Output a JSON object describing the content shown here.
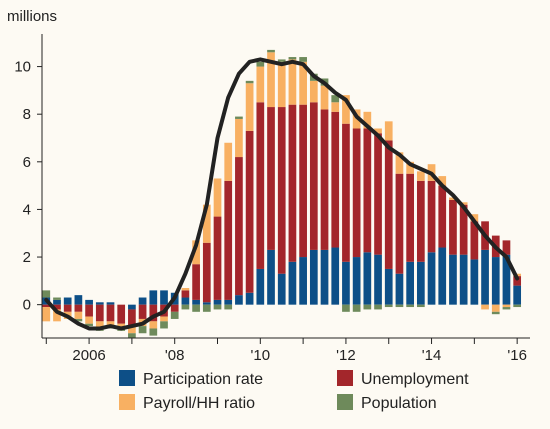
{
  "chart_data": {
    "type": "bar",
    "subtype": "stacked bar with line overlay",
    "ylabel": "millions",
    "ylim": [
      -1.4,
      11.2
    ],
    "yticks": [
      0,
      2,
      4,
      6,
      8,
      10
    ],
    "ytick_labels": [
      "0",
      "2",
      "4",
      "6",
      "8",
      "10"
    ],
    "xlim": [
      2004.9,
      2016.3
    ],
    "xticks": [
      2005,
      2006,
      2007,
      2008,
      2009,
      2010,
      2011,
      2012,
      2013,
      2014,
      2015,
      2016
    ],
    "xtick_labels": [
      {
        "x": 2006,
        "label": "2006"
      },
      {
        "x": 2008,
        "label": "'08"
      },
      {
        "x": 2010,
        "label": "'10"
      },
      {
        "x": 2012,
        "label": "'12"
      },
      {
        "x": 2014,
        "label": "'14"
      },
      {
        "x": 2016,
        "label": "'16"
      }
    ],
    "grid": false,
    "legend_position": "bottom",
    "x": [
      2005.0,
      2005.25,
      2005.5,
      2005.75,
      2006.0,
      2006.25,
      2006.5,
      2006.75,
      2007.0,
      2007.25,
      2007.5,
      2007.75,
      2008.0,
      2008.25,
      2008.5,
      2008.75,
      2009.0,
      2009.25,
      2009.5,
      2009.75,
      2010.0,
      2010.25,
      2010.5,
      2010.75,
      2011.0,
      2011.25,
      2011.5,
      2011.75,
      2012.0,
      2012.25,
      2012.5,
      2012.75,
      2013.0,
      2013.25,
      2013.5,
      2013.75,
      2014.0,
      2014.25,
      2014.5,
      2014.75,
      2015.0,
      2015.25,
      2015.5,
      2015.75,
      2016.0
    ],
    "series": [
      {
        "name": "Participation rate",
        "color": "#0d4f87",
        "values": [
          0.3,
          0.2,
          0.3,
          0.4,
          0.2,
          0.1,
          0.1,
          0.0,
          -0.2,
          0.3,
          0.6,
          0.6,
          0.5,
          0.3,
          0.2,
          0.1,
          0.2,
          0.2,
          0.4,
          0.5,
          1.5,
          2.3,
          1.3,
          1.8,
          2.0,
          2.3,
          2.3,
          2.4,
          1.8,
          2.0,
          2.2,
          2.1,
          1.5,
          1.3,
          1.8,
          1.8,
          2.2,
          2.4,
          2.1,
          2.1,
          1.9,
          2.3,
          2.0,
          2.1,
          0.8
        ]
      },
      {
        "name": "Unemployment",
        "color": "#a3262b",
        "values": [
          -0.1,
          -0.2,
          -0.3,
          -0.3,
          -0.5,
          -0.7,
          -0.7,
          -0.8,
          -0.7,
          -0.6,
          -0.7,
          -0.5,
          -0.3,
          0.3,
          1.5,
          2.5,
          3.5,
          5.0,
          5.8,
          6.8,
          7.0,
          6.0,
          7.0,
          6.6,
          6.4,
          6.2,
          5.9,
          5.7,
          5.8,
          5.4,
          5.2,
          5.1,
          5.4,
          4.2,
          3.7,
          3.4,
          3.0,
          2.6,
          2.3,
          2.1,
          1.6,
          1.2,
          0.9,
          0.6,
          0.4
        ]
      },
      {
        "name": "Payroll/HH ratio",
        "color": "#f8b062",
        "values": [
          -0.6,
          -0.5,
          -0.3,
          -0.3,
          -0.3,
          -0.3,
          -0.2,
          -0.2,
          -0.3,
          -0.3,
          -0.3,
          -0.2,
          0.0,
          0.1,
          1.0,
          1.6,
          1.6,
          1.6,
          1.6,
          2.0,
          1.5,
          2.3,
          1.9,
          1.9,
          1.8,
          0.9,
          1.0,
          0.4,
          1.2,
          0.8,
          0.7,
          0.2,
          0.8,
          0.9,
          0.5,
          0.4,
          0.7,
          0.4,
          0.1,
          0.1,
          0.3,
          -0.2,
          -0.3,
          -0.1,
          0.1
        ]
      },
      {
        "name": "Population",
        "color": "#6e8a5b",
        "values": [
          0.3,
          0.1,
          0.0,
          -0.1,
          -0.1,
          -0.1,
          -0.1,
          -0.1,
          -0.2,
          -0.3,
          -0.3,
          -0.3,
          -0.3,
          -0.2,
          -0.3,
          -0.3,
          -0.2,
          -0.2,
          0.1,
          0.1,
          0.2,
          0.1,
          0.1,
          0.1,
          0.2,
          0.3,
          0.3,
          0.3,
          -0.3,
          -0.3,
          -0.2,
          -0.2,
          -0.1,
          -0.1,
          -0.1,
          -0.1,
          0.0,
          0.0,
          0.0,
          0.0,
          0.0,
          0.0,
          -0.1,
          -0.1,
          -0.1
        ]
      }
    ],
    "line": {
      "color": "#222222",
      "values": [
        0.2,
        -0.3,
        -0.5,
        -0.8,
        -1.0,
        -1.0,
        -0.9,
        -1.0,
        -0.9,
        -0.8,
        -0.5,
        -0.3,
        0.3,
        1.3,
        2.5,
        4.2,
        7.0,
        8.7,
        9.7,
        10.2,
        10.3,
        10.2,
        10.1,
        10.2,
        10.1,
        9.6,
        9.3,
        8.9,
        8.6,
        7.9,
        7.5,
        7.1,
        6.6,
        6.3,
        5.9,
        5.7,
        5.5,
        5.0,
        4.6,
        4.1,
        3.5,
        2.9,
        2.4,
        2.0,
        1.1
      ]
    }
  }
}
